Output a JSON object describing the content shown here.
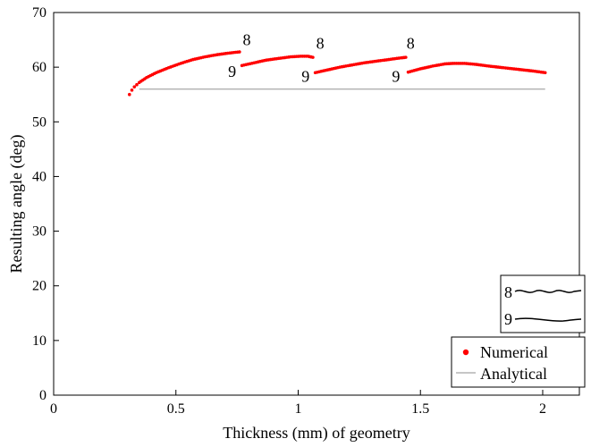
{
  "chart_data": {
    "type": "scatter",
    "xlabel": "Thickness (mm) of geometry",
    "ylabel": "Resulting angle (deg)",
    "xlim": [
      0,
      2.15
    ],
    "ylim": [
      0,
      70
    ],
    "xticks": [
      0,
      0.5,
      1,
      1.5,
      2
    ],
    "xtick_labels": [
      "0",
      "0.5",
      "1",
      "1.5",
      "2"
    ],
    "yticks": [
      0,
      10,
      20,
      30,
      40,
      50,
      60,
      70
    ],
    "ytick_labels": [
      "0",
      "10",
      "20",
      "30",
      "40",
      "50",
      "60",
      "70"
    ],
    "grid": false,
    "legend_position": "bottom-right",
    "series": [
      {
        "name": "Numerical",
        "marker": "dot",
        "color": "#ff0000",
        "segments": [
          {
            "x": [
              0.31,
              0.32,
              0.33,
              0.35,
              0.38,
              0.42,
              0.47,
              0.52,
              0.57,
              0.62,
              0.67,
              0.72,
              0.76
            ],
            "y": [
              55.0,
              55.8,
              56.4,
              57.2,
              58.1,
              59.0,
              59.9,
              60.7,
              61.4,
              61.9,
              62.3,
              62.6,
              62.8
            ]
          },
          {
            "x": [
              0.77,
              0.82,
              0.87,
              0.92,
              0.97,
              1.01,
              1.04,
              1.06
            ],
            "y": [
              60.3,
              60.8,
              61.3,
              61.6,
              61.9,
              62.0,
              62.0,
              61.8
            ]
          },
          {
            "x": [
              1.07,
              1.12,
              1.17,
              1.22,
              1.27,
              1.32,
              1.37,
              1.42,
              1.44
            ],
            "y": [
              59.0,
              59.5,
              60.0,
              60.4,
              60.8,
              61.1,
              61.4,
              61.7,
              61.8
            ]
          },
          {
            "x": [
              1.45,
              1.5,
              1.55,
              1.6,
              1.64,
              1.68,
              1.73,
              1.78,
              1.84,
              1.9,
              1.96,
              2.01
            ],
            "y": [
              59.1,
              59.7,
              60.2,
              60.6,
              60.7,
              60.7,
              60.5,
              60.2,
              59.9,
              59.6,
              59.3,
              59.0
            ]
          }
        ]
      },
      {
        "name": "Analytical",
        "marker": "line",
        "color": "#b3b3b3",
        "x": [
          0.35,
          2.01
        ],
        "y": [
          56.0,
          56.0
        ]
      }
    ],
    "annotations": [
      {
        "text": "8",
        "x": 0.79,
        "y": 64.0
      },
      {
        "text": "9",
        "x": 0.73,
        "y": 58.2
      },
      {
        "text": "8",
        "x": 1.09,
        "y": 63.4
      },
      {
        "text": "9",
        "x": 1.03,
        "y": 57.3
      },
      {
        "text": "8",
        "x": 1.46,
        "y": 63.4
      },
      {
        "text": "9",
        "x": 1.4,
        "y": 57.3
      }
    ],
    "inset": {
      "labels": [
        "8",
        "9"
      ],
      "description_icons": [
        "wavy-profile-8",
        "smooth-profile-9"
      ]
    }
  }
}
